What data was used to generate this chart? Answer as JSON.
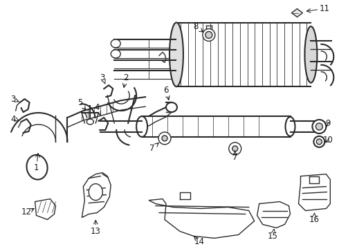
{
  "bg_color": "#ffffff",
  "line_color": "#2a2a2a",
  "text_color": "#1a1a1a",
  "fig_width": 4.9,
  "fig_height": 3.6,
  "dpi": 100
}
